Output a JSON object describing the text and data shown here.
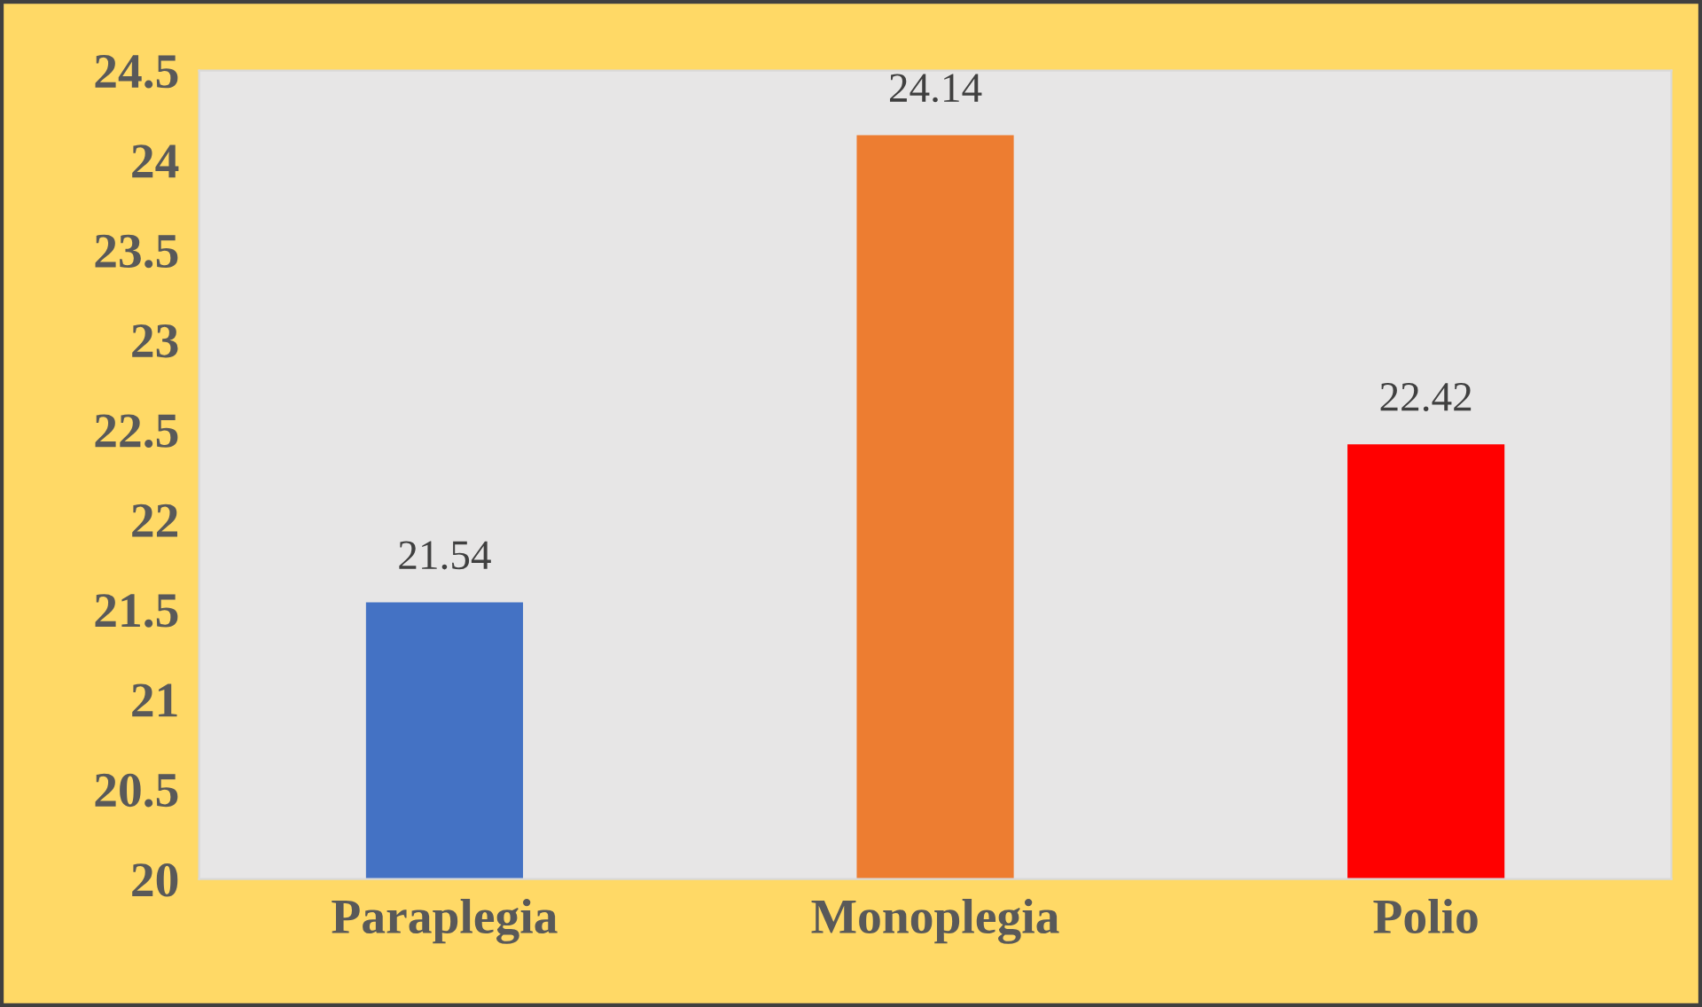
{
  "chart_data": {
    "type": "bar",
    "categories": [
      "Paraplegia",
      "Monoplegia",
      "Polio"
    ],
    "values": [
      21.54,
      24.14,
      22.42
    ],
    "colors": [
      "#4472c4",
      "#ed7d31",
      "#ff0000"
    ],
    "ylim": [
      20,
      24.5
    ],
    "yticks": [
      20,
      20.5,
      21,
      21.5,
      22,
      22.5,
      23,
      23.5,
      24,
      24.5
    ],
    "data_labels": true,
    "grid": false,
    "legend": false
  }
}
